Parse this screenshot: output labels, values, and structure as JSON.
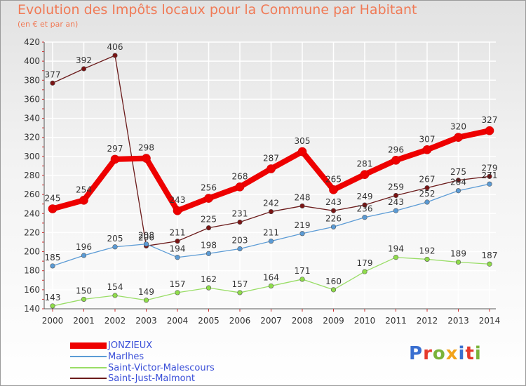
{
  "title": "Evolution des Impôts locaux pour la Commune par Habitant",
  "subtitle": "(en € et par an)",
  "logo": {
    "text": "Proxiti",
    "colors": [
      "#3a6fd0",
      "#e5392b",
      "#7ab33a",
      "#f2a31b",
      "#3a6fd0",
      "#e5392b",
      "#7ab33a"
    ]
  },
  "colors": {
    "title": "#f07a56",
    "legend_text": "#3a4fd8",
    "axis": "#555555",
    "grid": "#ffffff"
  },
  "chart_data": {
    "type": "line",
    "title": "Evolution des Impôts locaux pour la Commune par Habitant",
    "subtitle": "(en € et par an)",
    "x": [
      "2000",
      "2001",
      "2002",
      "2003",
      "2004",
      "2005",
      "2006",
      "2007",
      "2008",
      "2009",
      "2010",
      "2011",
      "2012",
      "2013",
      "2014"
    ],
    "ylim": [
      140,
      420
    ],
    "yticks": [
      140,
      160,
      180,
      200,
      220,
      240,
      260,
      280,
      300,
      320,
      340,
      360,
      380,
      400,
      420
    ],
    "grid": true,
    "legend_position": "bottom-left",
    "series": [
      {
        "name": "JONZIEUX",
        "color": "#ee0000",
        "values": [
          245,
          254,
          297,
          298,
          243,
          256,
          268,
          287,
          305,
          265,
          281,
          296,
          307,
          320,
          327
        ]
      },
      {
        "name": "Marlhes",
        "color": "#5b9bd5",
        "values": [
          185,
          196,
          205,
          208,
          194,
          198,
          203,
          211,
          219,
          226,
          236,
          243,
          252,
          264,
          271
        ]
      },
      {
        "name": "Saint-Victor-Malescours",
        "color": "#99dd66",
        "values": [
          143,
          150,
          154,
          149,
          157,
          162,
          157,
          164,
          171,
          160,
          179,
          194,
          192,
          189,
          187
        ]
      },
      {
        "name": "Saint-Just-Malmont",
        "color": "#6b1a1a",
        "values": [
          377,
          392,
          406,
          206,
          211,
          225,
          231,
          242,
          248,
          243,
          249,
          259,
          267,
          275,
          279
        ]
      }
    ]
  }
}
